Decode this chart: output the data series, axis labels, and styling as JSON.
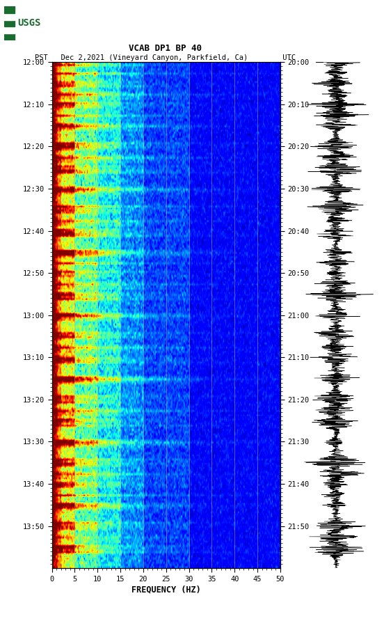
{
  "title_line1": "VCAB DP1 BP 40",
  "title_line2": "PST   Dec 2,2021 (Vineyard Canyon, Parkfield, Ca)        UTC",
  "xlabel": "FREQUENCY (HZ)",
  "freq_min": 0,
  "freq_max": 50,
  "freq_ticks": [
    0,
    5,
    10,
    15,
    20,
    25,
    30,
    35,
    40,
    45,
    50
  ],
  "time_labels_left": [
    "12:00",
    "12:10",
    "12:20",
    "12:30",
    "12:40",
    "12:50",
    "13:00",
    "13:10",
    "13:20",
    "13:30",
    "13:40",
    "13:50"
  ],
  "time_labels_right": [
    "20:00",
    "20:10",
    "20:20",
    "20:30",
    "20:40",
    "20:50",
    "21:00",
    "21:10",
    "21:20",
    "21:30",
    "21:40",
    "21:50"
  ],
  "background_color": "#ffffff",
  "colormap": "jet",
  "vmin": -20,
  "vmax": 80,
  "n_time_bins": 240,
  "n_freq_bins": 250,
  "seed": 12345,
  "usgs_logo_color": "#1a6b2e",
  "vertical_lines_freq": [
    5,
    10,
    15,
    20,
    25,
    30,
    35,
    40,
    45
  ],
  "vertical_line_color": "#888888"
}
